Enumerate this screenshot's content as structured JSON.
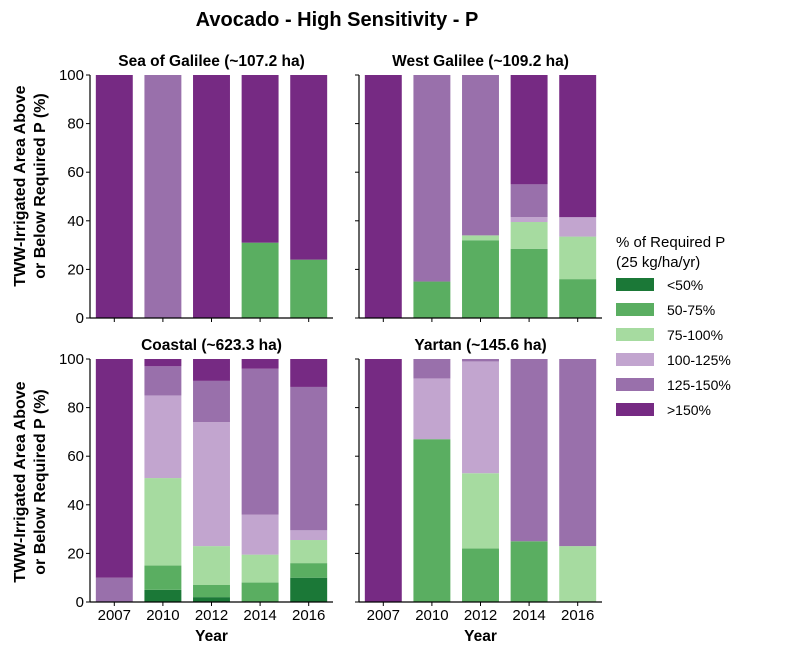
{
  "figure_title": "Avocado - High Sensitivity - P",
  "ylabel_line1": "TWW-Irrigated Area Above",
  "ylabel_line2": "or Below Required P (%)",
  "legend": {
    "title_line1": "% of Required P",
    "title_line2": "(25 kg/ha/yr)",
    "placement": "right",
    "items": [
      {
        "label": "<50%",
        "color": "#1b7837"
      },
      {
        "label": "50-75%",
        "color": "#5aae61"
      },
      {
        "label": "75-100%",
        "color": "#a6dba0"
      },
      {
        "label": "100-125%",
        "color": "#c2a5cf"
      },
      {
        "label": "125-150%",
        "color": "#9970ab"
      },
      {
        "label": ">150%",
        "color": "#762a83"
      }
    ]
  },
  "chart_data": [
    {
      "type": "bar",
      "stacked": true,
      "title": "Sea of Galilee (~107.2 ha)",
      "xlabel": "",
      "ylabel": "TWW-Irrigated Area Above or Below Required P (%)",
      "categories": [
        "2007",
        "2010",
        "2012",
        "2014",
        "2016"
      ],
      "ylim": [
        0,
        100
      ],
      "yticks": [
        0,
        20,
        40,
        60,
        80,
        100
      ],
      "series": [
        {
          "name": "<50%",
          "values": [
            0,
            0,
            0,
            0,
            0
          ]
        },
        {
          "name": "50-75%",
          "values": [
            0,
            0,
            0,
            31,
            24
          ]
        },
        {
          "name": "75-100%",
          "values": [
            0,
            0,
            0,
            0,
            0
          ]
        },
        {
          "name": "100-125%",
          "values": [
            0,
            0,
            0,
            0,
            0
          ]
        },
        {
          "name": "125-150%",
          "values": [
            0,
            100,
            0,
            0,
            0
          ]
        },
        {
          "name": ">150%",
          "values": [
            100,
            0,
            100,
            69,
            76
          ]
        }
      ]
    },
    {
      "type": "bar",
      "stacked": true,
      "title": "West Galilee (~109.2 ha)",
      "xlabel": "",
      "ylabel": "",
      "categories": [
        "2007",
        "2010",
        "2012",
        "2014",
        "2016"
      ],
      "ylim": [
        0,
        100
      ],
      "yticks": [
        0,
        20,
        40,
        60,
        80,
        100
      ],
      "series": [
        {
          "name": "<50%",
          "values": [
            0,
            0,
            0,
            0,
            0
          ]
        },
        {
          "name": "50-75%",
          "values": [
            0,
            15,
            32,
            28.5,
            16
          ]
        },
        {
          "name": "75-100%",
          "values": [
            0,
            0,
            2,
            11,
            17.5
          ]
        },
        {
          "name": "100-125%",
          "values": [
            0,
            0,
            0,
            2,
            8
          ]
        },
        {
          "name": "125-150%",
          "values": [
            0,
            85,
            66,
            13.5,
            0
          ]
        },
        {
          "name": ">150%",
          "values": [
            100,
            0,
            0,
            45,
            58.5
          ]
        }
      ]
    },
    {
      "type": "bar",
      "stacked": true,
      "title": "Coastal (~623.3 ha)",
      "xlabel": "Year",
      "ylabel": "TWW-Irrigated Area Above or Below Required P (%)",
      "categories": [
        "2007",
        "2010",
        "2012",
        "2014",
        "2016"
      ],
      "ylim": [
        0,
        100
      ],
      "yticks": [
        0,
        20,
        40,
        60,
        80,
        100
      ],
      "series": [
        {
          "name": "<50%",
          "values": [
            0,
            5,
            2,
            0,
            10
          ]
        },
        {
          "name": "50-75%",
          "values": [
            0,
            10,
            5,
            8,
            6
          ]
        },
        {
          "name": "75-100%",
          "values": [
            0,
            36,
            16,
            11.5,
            9.5
          ]
        },
        {
          "name": "100-125%",
          "values": [
            0,
            34,
            51,
            16.5,
            4
          ]
        },
        {
          "name": "125-150%",
          "values": [
            10,
            12,
            17,
            60,
            59
          ]
        },
        {
          "name": ">150%",
          "values": [
            90,
            3,
            9,
            4,
            11.5
          ]
        }
      ]
    },
    {
      "type": "bar",
      "stacked": true,
      "title": "Yartan (~145.6 ha)",
      "xlabel": "Year",
      "ylabel": "",
      "categories": [
        "2007",
        "2010",
        "2012",
        "2014",
        "2016"
      ],
      "ylim": [
        0,
        100
      ],
      "yticks": [
        0,
        20,
        40,
        60,
        80,
        100
      ],
      "series": [
        {
          "name": "<50%",
          "values": [
            0,
            0,
            0,
            0,
            0
          ]
        },
        {
          "name": "50-75%",
          "values": [
            0,
            67,
            22,
            25,
            0
          ]
        },
        {
          "name": "75-100%",
          "values": [
            0,
            0,
            31,
            0,
            23
          ]
        },
        {
          "name": "100-125%",
          "values": [
            0,
            25,
            46,
            0,
            0
          ]
        },
        {
          "name": "125-150%",
          "values": [
            0,
            8,
            1,
            75,
            77
          ]
        },
        {
          "name": ">150%",
          "values": [
            100,
            0,
            0,
            0,
            0
          ]
        }
      ]
    }
  ]
}
